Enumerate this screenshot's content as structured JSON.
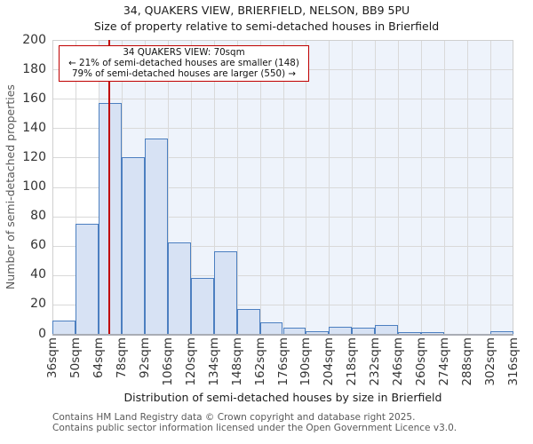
{
  "header": {
    "title": "34, QUAKERS VIEW, BRIERFIELD, NELSON, BB9 5PU",
    "subtitle": "Size of property relative to semi-detached houses in Brierfield"
  },
  "annotation": {
    "line1": "34 QUAKERS VIEW: 70sqm",
    "line2": "← 21% of semi-detached houses are smaller (148)",
    "line3": "79% of semi-detached houses are larger (550) →"
  },
  "chart_data": {
    "type": "bar",
    "title": "34, QUAKERS VIEW, BRIERFIELD, NELSON, BB9 5PU",
    "subtitle": "Size of property relative to semi-detached houses in Brierfield",
    "xlabel": "Distribution of semi-detached houses by size in Brierfield",
    "ylabel": "Number of semi-detached properties",
    "categories": [
      "36sqm",
      "50sqm",
      "64sqm",
      "78sqm",
      "92sqm",
      "106sqm",
      "120sqm",
      "134sqm",
      "148sqm",
      "162sqm",
      "176sqm",
      "190sqm",
      "204sqm",
      "218sqm",
      "232sqm",
      "246sqm",
      "260sqm",
      "274sqm",
      "288sqm",
      "302sqm",
      "316sqm"
    ],
    "bin_start_sqm": [
      36,
      50,
      64,
      78,
      92,
      106,
      120,
      134,
      148,
      162,
      176,
      190,
      204,
      218,
      232,
      246,
      260,
      274,
      288,
      302
    ],
    "bin_width_sqm": 14,
    "values": [
      9,
      75,
      157,
      120,
      133,
      62,
      38,
      56,
      17,
      8,
      4,
      2,
      5,
      4,
      6,
      1,
      1,
      0,
      0,
      2
    ],
    "ylim": [
      0,
      200
    ],
    "yticks": [
      0,
      20,
      40,
      60,
      80,
      100,
      120,
      140,
      160,
      180,
      200
    ],
    "grid": true,
    "marker": {
      "value_sqm": 70,
      "label": "34 QUAKERS VIEW: 70sqm",
      "smaller_pct": 21,
      "smaller_count": 148,
      "larger_pct": 79,
      "larger_count": 550,
      "color": "#c00000"
    },
    "highlight_region": {
      "from_sqm": 64,
      "to_sqm": 316,
      "color": "#eef3fb"
    },
    "bar_fill": "#d7e2f4",
    "bar_stroke": "#4c7fc0"
  },
  "footer": {
    "line1": "Contains HM Land Registry data © Crown copyright and database right 2025.",
    "line2": "Contains public sector information licensed under the Open Government Licence v3.0."
  }
}
